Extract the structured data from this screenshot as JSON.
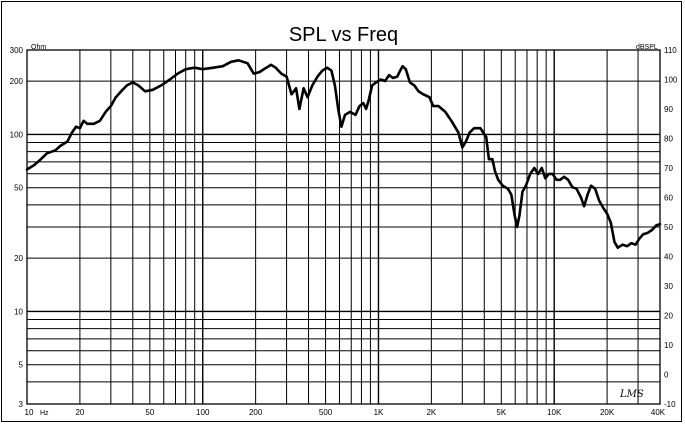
{
  "chart_data": {
    "type": "line",
    "title": "SPL vs Freq",
    "xlabel": "Hz",
    "left_unit": "Ohm",
    "right_unit": "dBSPL",
    "xscale": "log",
    "left_yscale": "log",
    "xlim": [
      10,
      40000
    ],
    "left_ylim": [
      3,
      300
    ],
    "right_ylim": [
      -10,
      110
    ],
    "grid": true,
    "x_ticks": [
      {
        "v": 10,
        "label": "10"
      },
      {
        "v": 20,
        "label": "20"
      },
      {
        "v": 50,
        "label": "50"
      },
      {
        "v": 100,
        "label": "100"
      },
      {
        "v": 200,
        "label": "200"
      },
      {
        "v": 500,
        "label": "500"
      },
      {
        "v": 1000,
        "label": "1K"
      },
      {
        "v": 2000,
        "label": "2K"
      },
      {
        "v": 5000,
        "label": "5K"
      },
      {
        "v": 10000,
        "label": "10K"
      },
      {
        "v": 20000,
        "label": "20K"
      },
      {
        "v": 40000,
        "label": "40K"
      }
    ],
    "left_ticks": [
      {
        "v": 300,
        "label": "300"
      },
      {
        "v": 200,
        "label": "200"
      },
      {
        "v": 100,
        "label": "100"
      },
      {
        "v": 50,
        "label": "50"
      },
      {
        "v": 20,
        "label": "20"
      },
      {
        "v": 10,
        "label": "10"
      },
      {
        "v": 5,
        "label": "5"
      },
      {
        "v": 3,
        "label": "3"
      }
    ],
    "right_ticks": [
      {
        "v": 110,
        "label": "110"
      },
      {
        "v": 100,
        "label": "100"
      },
      {
        "v": 90,
        "label": "90"
      },
      {
        "v": 80,
        "label": "80"
      },
      {
        "v": 70,
        "label": "70"
      },
      {
        "v": 60,
        "label": "60"
      },
      {
        "v": 50,
        "label": "50"
      },
      {
        "v": 40,
        "label": "40"
      },
      {
        "v": 30,
        "label": "30"
      },
      {
        "v": 20,
        "label": "20"
      },
      {
        "v": 10,
        "label": "10"
      },
      {
        "v": 0,
        "label": "0"
      },
      {
        "v": -10,
        "label": "-10"
      }
    ],
    "watermark": "LMS",
    "series": [
      {
        "axis": "right",
        "color": "#000000",
        "points": [
          [
            10,
            69.5
          ],
          [
            11,
            71
          ],
          [
            12,
            73
          ],
          [
            13,
            75
          ],
          [
            14.5,
            76
          ],
          [
            15.5,
            77.5
          ],
          [
            17,
            79
          ],
          [
            18,
            82
          ],
          [
            19,
            84
          ],
          [
            20,
            83.5
          ],
          [
            21,
            86
          ],
          [
            22,
            85
          ],
          [
            24,
            85
          ],
          [
            26,
            86
          ],
          [
            28,
            89
          ],
          [
            30,
            91
          ],
          [
            32,
            94
          ],
          [
            35,
            96.5
          ],
          [
            37,
            98
          ],
          [
            40,
            99
          ],
          [
            43,
            98
          ],
          [
            47,
            96
          ],
          [
            52,
            96.5
          ],
          [
            58,
            98
          ],
          [
            65,
            100
          ],
          [
            72,
            102
          ],
          [
            80,
            103.5
          ],
          [
            90,
            104
          ],
          [
            100,
            103.5
          ],
          [
            115,
            104
          ],
          [
            130,
            104.5
          ],
          [
            145,
            106
          ],
          [
            160,
            106.5
          ],
          [
            180,
            105.5
          ],
          [
            195,
            102
          ],
          [
            210,
            102.5
          ],
          [
            230,
            104
          ],
          [
            245,
            105
          ],
          [
            260,
            104
          ],
          [
            280,
            102
          ],
          [
            300,
            101
          ],
          [
            320,
            95
          ],
          [
            340,
            97
          ],
          [
            355,
            90
          ],
          [
            375,
            97
          ],
          [
            395,
            94
          ],
          [
            420,
            98
          ],
          [
            450,
            101
          ],
          [
            480,
            103
          ],
          [
            510,
            104
          ],
          [
            540,
            103
          ],
          [
            565,
            98
          ],
          [
            590,
            90
          ],
          [
            615,
            84
          ],
          [
            645,
            88
          ],
          [
            690,
            89
          ],
          [
            740,
            88
          ],
          [
            780,
            91
          ],
          [
            820,
            92
          ],
          [
            850,
            90
          ],
          [
            880,
            93
          ],
          [
            920,
            98
          ],
          [
            970,
            99
          ],
          [
            1030,
            100
          ],
          [
            1090,
            99.5
          ],
          [
            1150,
            101.5
          ],
          [
            1210,
            100.5
          ],
          [
            1280,
            101
          ],
          [
            1330,
            103
          ],
          [
            1370,
            104.5
          ],
          [
            1430,
            103.5
          ],
          [
            1510,
            99
          ],
          [
            1600,
            98
          ],
          [
            1690,
            96
          ],
          [
            1800,
            95
          ],
          [
            1950,
            94
          ],
          [
            2050,
            91
          ],
          [
            2200,
            91
          ],
          [
            2400,
            89
          ],
          [
            2600,
            86
          ],
          [
            2850,
            82
          ],
          [
            3000,
            77
          ],
          [
            3150,
            79
          ],
          [
            3300,
            82
          ],
          [
            3500,
            83.5
          ],
          [
            3800,
            83.5
          ],
          [
            4100,
            80.5
          ],
          [
            4250,
            73
          ],
          [
            4450,
            73
          ],
          [
            4600,
            69
          ],
          [
            4800,
            66
          ],
          [
            5100,
            64
          ],
          [
            5450,
            63
          ],
          [
            5700,
            61
          ],
          [
            5950,
            54
          ],
          [
            6150,
            50
          ],
          [
            6350,
            54
          ],
          [
            6600,
            62
          ],
          [
            6900,
            64
          ],
          [
            7300,
            68
          ],
          [
            7700,
            70
          ],
          [
            8100,
            68
          ],
          [
            8500,
            70
          ],
          [
            8900,
            66.5
          ],
          [
            9300,
            68
          ],
          [
            9800,
            68
          ],
          [
            10300,
            66
          ],
          [
            10800,
            66
          ],
          [
            11400,
            67
          ],
          [
            12000,
            66
          ],
          [
            12700,
            63.5
          ],
          [
            13400,
            63
          ],
          [
            14200,
            60
          ],
          [
            14800,
            57
          ],
          [
            15500,
            61
          ],
          [
            16200,
            64
          ],
          [
            17100,
            63
          ],
          [
            18000,
            59
          ],
          [
            19000,
            56.5
          ],
          [
            20000,
            54.5
          ],
          [
            21000,
            51.5
          ],
          [
            22000,
            45
          ],
          [
            23000,
            43
          ],
          [
            24500,
            44
          ],
          [
            26000,
            43.5
          ],
          [
            27500,
            44.5
          ],
          [
            29000,
            44
          ],
          [
            30500,
            46
          ],
          [
            32000,
            47.5
          ],
          [
            34000,
            48
          ],
          [
            36000,
            49
          ],
          [
            38000,
            50.5
          ],
          [
            40000,
            51
          ]
        ]
      }
    ]
  }
}
